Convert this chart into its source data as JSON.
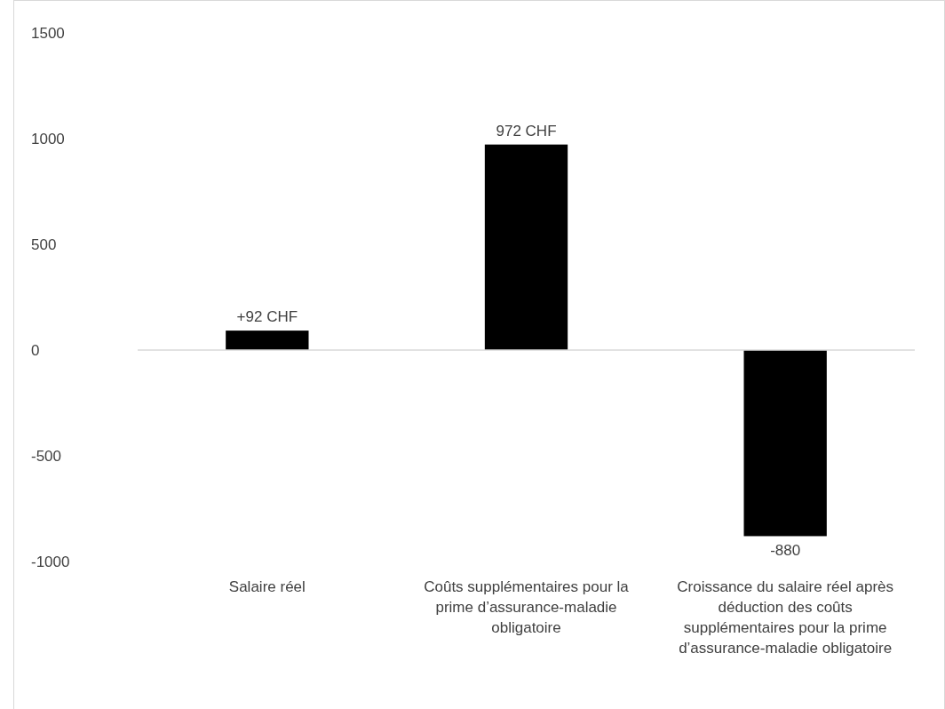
{
  "chart_data": {
    "type": "bar",
    "categories": [
      "Salaire réel",
      "Coûts supplémentaires pour la prime d’assurance-maladie obligatoire",
      "Croissance du salaire réel après déduction des coûts supplémentaires pour la prime d’assurance-maladie obligatoire"
    ],
    "values": [
      92,
      972,
      -880
    ],
    "color": "#000000",
    "value_labels": [
      "+92 CHF",
      "972 CHF",
      "-880"
    ],
    "ylim": [
      -1000,
      1500
    ],
    "yticks": [
      -1000,
      -500,
      0,
      500,
      1000,
      1500
    ]
  }
}
